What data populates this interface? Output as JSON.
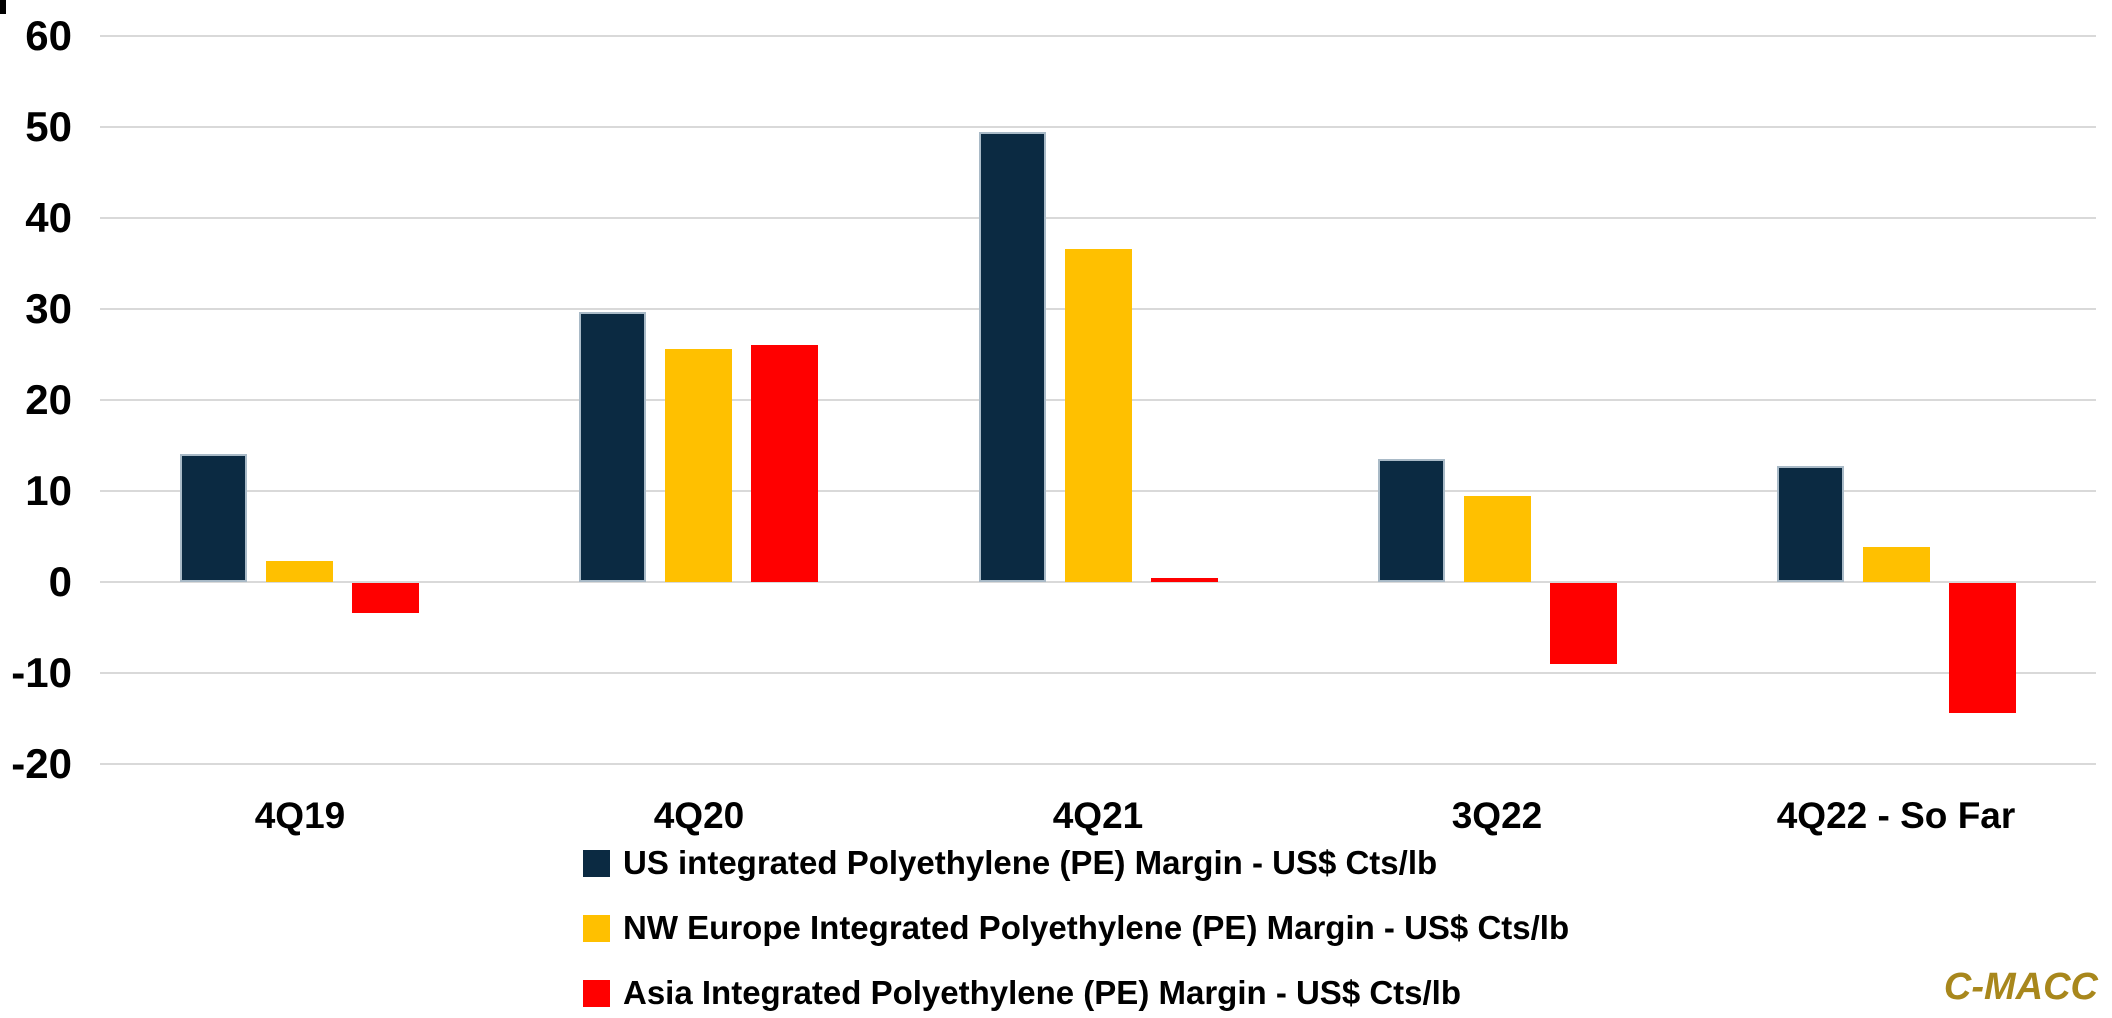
{
  "chart_data": {
    "type": "bar",
    "categories": [
      "4Q19",
      "4Q20",
      "4Q21",
      "3Q22",
      "4Q22 - So Far"
    ],
    "series": [
      {
        "name": "US integrated Polyethylene (PE) Margin - US$ Cts/lb",
        "color": "#0b2a42",
        "values": [
          14.1,
          29.7,
          49.5,
          13.5,
          12.7
        ]
      },
      {
        "name": "NW Europe Integrated Polyethylene (PE) Margin - US$ Cts/lb",
        "color": "#ffc000",
        "values": [
          2.3,
          25.6,
          36.6,
          9.4,
          3.9
        ]
      },
      {
        "name": "Asia Integrated Polyethylene (PE) Margin - US$ Cts/lb",
        "color": "#ff0000",
        "values": [
          -3.3,
          26.0,
          0.4,
          -8.9,
          -14.3
        ]
      }
    ],
    "title": "",
    "xlabel": "",
    "ylabel": "",
    "ylim": [
      -20,
      60
    ],
    "yticks": [
      60,
      50,
      40,
      30,
      20,
      10,
      0,
      -10,
      -20
    ],
    "grid": true,
    "gridline_color": "#d9d9d9",
    "legend_position": "bottom-left-of-center"
  },
  "branding": {
    "logo_text": "C-MACC",
    "logo_color": "#a8871c"
  }
}
